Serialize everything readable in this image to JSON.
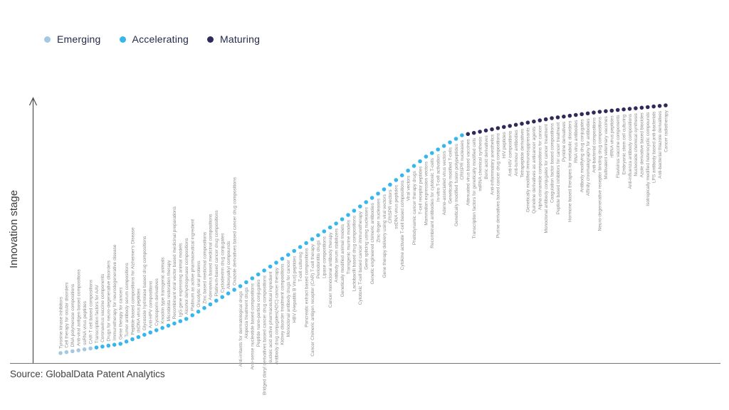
{
  "source": "Source: GlobalData Patent Analytics",
  "legend": {
    "items": [
      {
        "label": "Emerging",
        "color": "#a5c8e1"
      },
      {
        "label": "Accelerating",
        "color": "#36b6ea"
      },
      {
        "label": "Maturing",
        "color": "#2e2a5a"
      }
    ]
  },
  "chart_data": {
    "type": "scatter",
    "subtype": "innovation-s-curve",
    "title": "",
    "xlabel": "",
    "ylabel": "Innovation stage",
    "grid": false,
    "legend_position": "top-left",
    "x_encoding": "rank order of technology along the S-curve (no visible x ticks)",
    "y_encoding": "innovation stage (conceptual axis with upward arrow, no ticks)",
    "stage_colors": {
      "Emerging": "#a5c8e1",
      "Accelerating": "#36b6ea",
      "Maturing": "#2e2a5a"
    },
    "series": [
      {
        "name": "Emerging",
        "labels": [
          "Tyrosine kinase inhibitors",
          "Cell therapy for ocular disorders",
          "DNA polymerase compositions",
          "Anti-viral antigen based compositions",
          "ssRNA virus peptides",
          "CAR-T cell based compositions"
        ]
      },
      {
        "name": "Accelerating",
        "labels": [
          "Transcription factors for AAV",
          "Coronavirus vaccine components",
          "Drugs for neuro-degenerative disorders",
          "Immunotherapy for neurodegenerative disease",
          "Gene therapy for cancers",
          "Tumor antibody serum compositions",
          "Peptide-based compositions for Alzheimer's Disease",
          "dsDNA virus peptides",
          "Glycoside hydrolase based drug compositions",
          "Anti-HPV compositions",
          "Cyclosporin derivatives",
          "Knockin type transgenic animals",
          "Microbiota restoration therapy",
          "Recombinant viral vector based medicinal preparations",
          "IgG gene expressing animal models",
          "Alcohol dehydrogenase compositions",
          "Platinum as active pharmaceutical ingredient",
          "Oncolytic viral proteins",
          "Zinc based medicinal compositions",
          "Adenovirus based medicinal compositions",
          "Platinum-based cancer drug compositions",
          "Cyclodextrin drug conjugates",
          "Alkoxyalkyl compounds",
          "Oxazole derivatives based cancer drug compositions",
          "Anti-irritants for dermatological drugs",
          "Alopecia treatment drugs",
          "Anti-sense nucleotide based compositions",
          "Peptide nano-particle conjugates",
          "Bridged diaryl derivatives based cancer drug compositions",
          "Nucleic acid active pharmaceutical ingredient",
          "Antibody drug conjugates(ADC) cancer therapy",
          "Kidney disorder treatment compositions",
          "Monoclonal antibody drugs for cancer",
          "HBV (Hepatitis B Virus) peptides",
          "T-cell culturing",
          "Pancreatic extract based compositions",
          "Cancer Chimeric antigen receptor (CAR) T-cell therapy",
          "Periodontitis drugs",
          "Lipase compositions",
          "Cancer monoclonal antibody therapy",
          "Antibody serum stabilizers",
          "Genetically modified animal models",
          "Transgenic murine models",
          "Lactobacilli based drug compositions",
          "Cytotoxic T-cell based cancer immunotherapy",
          "Gene splicing using nucleases",
          "Genetic engineered chimeric antibodies",
          "Zinc-finger nucleases",
          "Gene therapy delivery using viral vectors",
          "CRISPR vectors",
          "ssDNA virus peptides",
          "Cytokine activate T-cell based compositions",
          "Viral vectors",
          "Photodynamic cancer therapy drugs",
          "T-cell receptor peptides",
          "Mammalian expression vectors",
          "Recombinant antibodies for cytotoxic T-cells",
          "In-vitro T-cell activation",
          "Adeno-associated virus vectors",
          "Genetically modified T-cells",
          "Genetically modified fusion polypeptides",
          "CRISPR nucleases"
        ]
      },
      {
        "name": "Maturing",
        "labels": [
          "Attenuated virus based vaccines",
          "Transcription factors for genetically modified cells",
          "miRNA chemical synthesis",
          "Boric acid derivatives",
          "Anti-inflammatory anesthetics",
          "Purine derivatives based cancer drug compositions",
          "HIV peptides",
          "Anti-HIV compositions",
          "Anti-tumour antibodies",
          "Tetrapeptide derivatives",
          "Genetically modified immunosuppresants",
          "Quinoline derivatives as anticancer agents",
          "Alpha-cinnamide compositions for cancer",
          "Monoclonal antibody conjugates for cancer treatment",
          "Coagulation factor based compositions",
          "Peptide based inhibitors for cancer treatment",
          "Pyridine derivatives",
          "Hormone based therapies for metabolic disorders",
          "RNA virus antibodies",
          "Antibody modifying drug conjugates",
          "Affinity chromatography for antibodies",
          "Anti-bacterial compositions",
          "Neuro-degenerative receptor binding drug compositions",
          "Multivalent veterinary vaccines",
          "rtRNA virus peptides",
          "Flavivirus vaccine components",
          "Embryonic stem cell culturing",
          "Anti-influenza antibody compositions",
          "Nucleoside chemical synthesis",
          "Azole derivative based biocides",
          "Isotropically modified heterocyclic compounds",
          "LPS antibody based anti-bacterials",
          "Anti-bacterial thiazole derivatives",
          "Cancer radiotherapy"
        ]
      }
    ]
  }
}
